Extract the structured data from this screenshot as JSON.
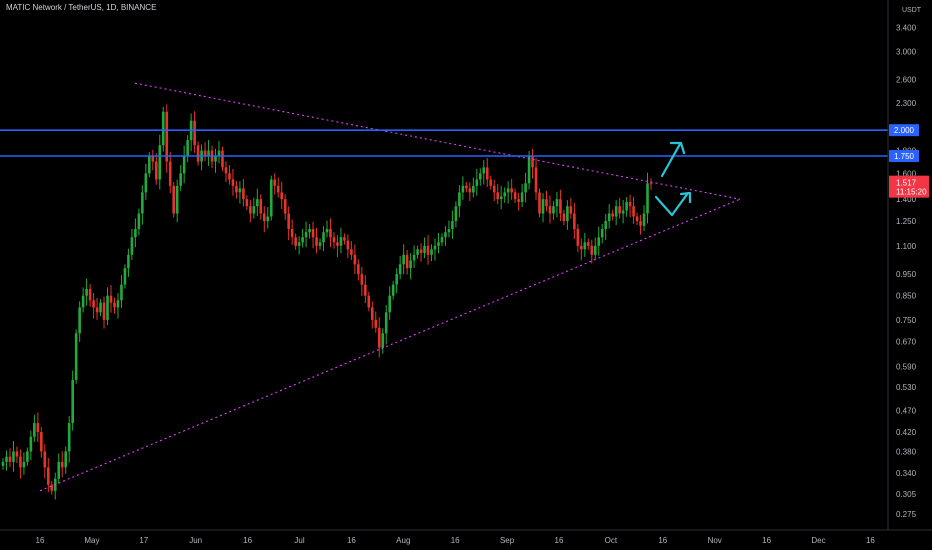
{
  "header": {
    "title": "MATIC Network / TetherUS, 1D, BINANCE"
  },
  "chart_data": {
    "type": "candlestick",
    "title": "MATIC Network / TetherUS, 1D, BINANCE",
    "y_scale": "log",
    "ylim": [
      0.25,
      3.6
    ],
    "y_unit": "USDT",
    "y_ticks": [
      "3.400",
      "3.000",
      "2.600",
      "2.300",
      "2.000",
      "1.800",
      "1.600",
      "1.400",
      "1.250",
      "1.100",
      "0.950",
      "0.850",
      "0.750",
      "0.670",
      "0.590",
      "0.530",
      "0.470",
      "0.420",
      "0.380",
      "0.340",
      "0.305",
      "0.275"
    ],
    "x_ticks": [
      "16",
      "May",
      "17",
      "Jun",
      "16",
      "Jul",
      "16",
      "Aug",
      "16",
      "Sep",
      "16",
      "Oct",
      "16",
      "Nov",
      "16",
      "Dec",
      "16"
    ],
    "levels": [
      {
        "value": 2.0,
        "label": "2.000",
        "color": "#2962ff"
      },
      {
        "value": 1.75,
        "label": "1.750",
        "color": "#2962ff"
      }
    ],
    "current_price": {
      "value": 1.517,
      "label": "1.517",
      "countdown": "11:15:20",
      "color": "#f23645"
    },
    "trendlines": [
      {
        "name": "upper-resistance",
        "points": [
          [
            "Apr 30",
            2.55
          ],
          [
            "Nov 5",
            1.4
          ]
        ],
        "color": "#e040fb"
      },
      {
        "name": "lower-support",
        "points": [
          [
            "Apr 17",
            0.31
          ],
          [
            "Nov 5",
            1.4
          ]
        ],
        "color": "#e040fb"
      }
    ],
    "candles_close": [
      0.36,
      0.37,
      0.36,
      0.38,
      0.37,
      0.35,
      0.36,
      0.38,
      0.41,
      0.44,
      0.42,
      0.38,
      0.35,
      0.32,
      0.31,
      0.33,
      0.36,
      0.35,
      0.38,
      0.44,
      0.55,
      0.7,
      0.8,
      0.85,
      0.88,
      0.83,
      0.8,
      0.78,
      0.82,
      0.75,
      0.85,
      0.82,
      0.8,
      0.83,
      0.9,
      0.98,
      1.05,
      1.15,
      1.2,
      1.3,
      1.45,
      1.6,
      1.75,
      1.7,
      1.55,
      1.85,
      2.2,
      1.7,
      1.5,
      1.3,
      1.5,
      1.6,
      1.75,
      1.9,
      2.1,
      1.85,
      1.7,
      1.8,
      1.75,
      1.8,
      1.7,
      1.75,
      1.8,
      1.65,
      1.6,
      1.55,
      1.5,
      1.45,
      1.48,
      1.4,
      1.35,
      1.3,
      1.35,
      1.4,
      1.3,
      1.25,
      1.28,
      1.55,
      1.5,
      1.45,
      1.4,
      1.3,
      1.2,
      1.15,
      1.1,
      1.12,
      1.15,
      1.18,
      1.2,
      1.15,
      1.1,
      1.12,
      1.18,
      1.2,
      1.15,
      1.12,
      1.1,
      1.15,
      1.13,
      1.08,
      1.05,
      1.0,
      0.95,
      0.9,
      0.85,
      0.8,
      0.75,
      0.72,
      0.65,
      0.7,
      0.78,
      0.85,
      0.9,
      0.95,
      1.0,
      1.05,
      0.98,
      1.02,
      1.05,
      1.08,
      1.06,
      1.1,
      1.05,
      1.08,
      1.1,
      1.12,
      1.15,
      1.18,
      1.2,
      1.25,
      1.35,
      1.45,
      1.5,
      1.48,
      1.45,
      1.5,
      1.55,
      1.6,
      1.65,
      1.55,
      1.5,
      1.45,
      1.4,
      1.42,
      1.45,
      1.48,
      1.45,
      1.4,
      1.38,
      1.45,
      1.52,
      1.75,
      1.65,
      1.45,
      1.3,
      1.4,
      1.35,
      1.3,
      1.35,
      1.4,
      1.3,
      1.25,
      1.35,
      1.3,
      1.2,
      1.1,
      1.08,
      1.12,
      1.1,
      1.05,
      1.1,
      1.15,
      1.2,
      1.25,
      1.3,
      1.28,
      1.35,
      1.3,
      1.32,
      1.38,
      1.35,
      1.28,
      1.25,
      1.22,
      1.3,
      1.52,
      1.517
    ]
  }
}
